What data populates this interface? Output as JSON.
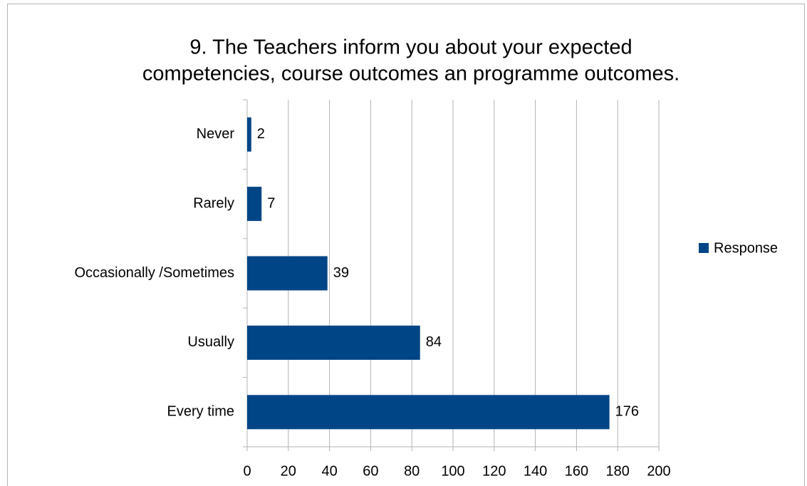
{
  "chart_data": {
    "type": "bar",
    "orientation": "horizontal",
    "title": [
      "9. The Teachers inform you about your expected",
      "competencies, course outcomes an programme outcomes."
    ],
    "categories": [
      "Never",
      "Rarely",
      "Occasionally /Sometimes",
      "Usually",
      "Every time"
    ],
    "series": [
      {
        "name": "Response",
        "color": "#004586",
        "values": [
          2,
          7,
          39,
          84,
          176
        ]
      }
    ],
    "xlim": [
      0,
      200
    ],
    "xticks": [
      0,
      20,
      40,
      60,
      80,
      100,
      120,
      140,
      160,
      180,
      200
    ],
    "grid": true,
    "legend": "right"
  }
}
